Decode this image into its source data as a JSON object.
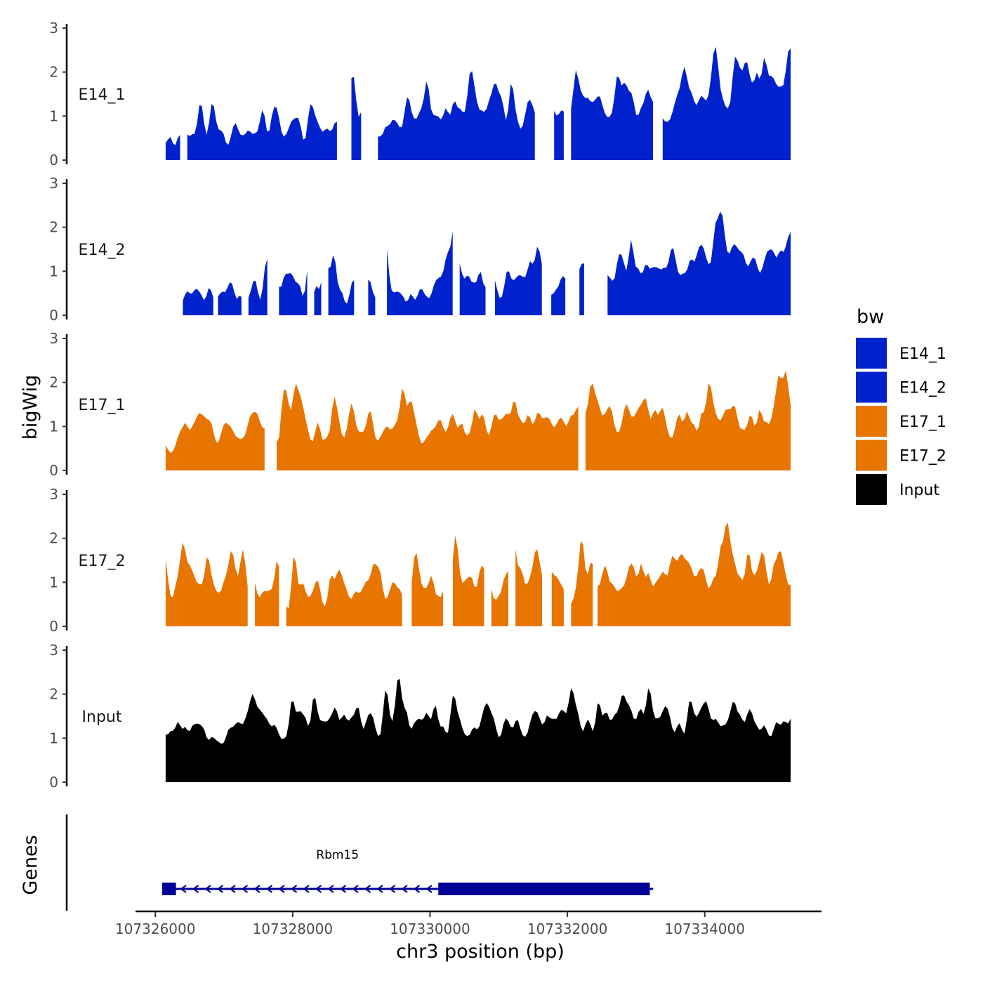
{
  "chart_data": {
    "type": "area",
    "ylabel": "bigWig",
    "xlabel": "chr3 position (bp)",
    "ylim": [
      0,
      3
    ],
    "yticks": [
      0,
      1,
      2,
      3
    ],
    "xlim": [
      107325650,
      107335700
    ],
    "xticks": [
      107326000,
      107328000,
      107330000,
      107332000,
      107334000
    ],
    "xtick_labels": [
      "107326000",
      "107328000",
      "107330000",
      "107332000",
      "107334000"
    ],
    "legend": {
      "title": "bw",
      "position": "right",
      "entries": [
        {
          "label": "E14_1",
          "color": "#0022CC"
        },
        {
          "label": "E14_2",
          "color": "#0022CC"
        },
        {
          "label": "E17_1",
          "color": "#E87500"
        },
        {
          "label": "E17_2",
          "color": "#E87500"
        },
        {
          "label": "Input",
          "color": "#000000"
        }
      ]
    },
    "tracks": [
      {
        "name": "E14_1",
        "color": "#0022CC",
        "seed": 11,
        "x_start": 107326150,
        "x_end": 107335250,
        "baseline": 0.55,
        "amp": 1.4,
        "trend": 1.0,
        "gaps": [
          [
            107326380,
            107326450
          ],
          [
            107328660,
            107328850
          ],
          [
            107329020,
            107329230
          ],
          [
            107331560,
            107331780
          ],
          [
            107331960,
            107332020
          ],
          [
            107333260,
            107333380
          ]
        ]
      },
      {
        "name": "E14_2",
        "color": "#0022CC",
        "seed": 23,
        "x_start": 107326400,
        "x_end": 107335250,
        "baseline": 0.45,
        "amp": 1.4,
        "trend": 0.9,
        "gaps": [
          [
            107326870,
            107326910
          ],
          [
            107327280,
            107327350
          ],
          [
            107327650,
            107327770
          ],
          [
            107328230,
            107328300
          ],
          [
            107328420,
            107328500
          ],
          [
            107328900,
            107329080
          ],
          [
            107329230,
            107329350
          ],
          [
            107330350,
            107330400
          ],
          [
            107330820,
            107330940
          ],
          [
            107331630,
            107331760
          ],
          [
            107331970,
            107332160
          ],
          [
            107332260,
            107332560
          ]
        ]
      },
      {
        "name": "E17_1",
        "color": "#E87500",
        "seed": 37,
        "x_start": 107326150,
        "x_end": 107335250,
        "baseline": 0.75,
        "amp": 1.3,
        "trend": 0.5,
        "gaps": [
          [
            107327600,
            107327750
          ],
          [
            107332170,
            107332230
          ]
        ]
      },
      {
        "name": "E17_2",
        "color": "#E87500",
        "seed": 41,
        "x_start": 107326150,
        "x_end": 107335250,
        "baseline": 0.7,
        "amp": 1.5,
        "trend": 0.4,
        "gaps": [
          [
            107327360,
            107327420
          ],
          [
            107327820,
            107327880
          ],
          [
            107329610,
            107329700
          ],
          [
            107330220,
            107330330
          ],
          [
            107330810,
            107330880
          ],
          [
            107331150,
            107331230
          ],
          [
            107331650,
            107331750
          ],
          [
            107331950,
            107332020
          ],
          [
            107332380,
            107332430
          ]
        ]
      },
      {
        "name": "Input",
        "color": "#000000",
        "seed": 53,
        "x_start": 107326150,
        "x_end": 107335250,
        "baseline": 1.25,
        "amp": 1.2,
        "trend": 0.1,
        "gaps": []
      }
    ],
    "genes_track": {
      "ylabel": "Genes",
      "genes": [
        {
          "name": "Rbm15",
          "strand": "-",
          "start": 107326100,
          "end": 107333250,
          "color": "#000099",
          "exons": [
            [
              107326100,
              107326300
            ],
            [
              107330120,
              107333200
            ]
          ]
        }
      ]
    }
  }
}
